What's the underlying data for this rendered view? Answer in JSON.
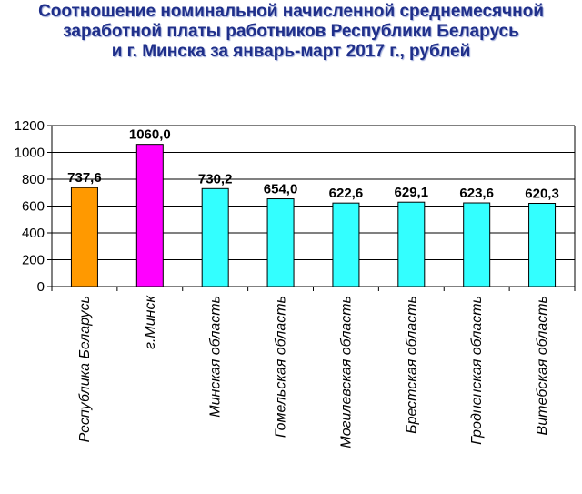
{
  "title_lines": [
    "Соотношение номинальной начисленной среднемесячной",
    "заработной платы работников Республики Беларусь",
    "и г. Минска за январь-март 2017 г., рублей"
  ],
  "colors": {
    "title": "#1f2f8a",
    "republic": "#ff9900",
    "minsk": "#ff00ff",
    "region": "#33ffff",
    "gridline": "#000000"
  },
  "chart_data": {
    "type": "bar",
    "title": "Соотношение номинальной начисленной среднемесячной заработной платы работников Республики Беларусь и г. Минска за январь-март 2017 г., рублей",
    "xlabel": "",
    "ylabel": "",
    "ylim": [
      0,
      1200
    ],
    "yticks": [
      0,
      200,
      400,
      600,
      800,
      1000,
      1200
    ],
    "grid": true,
    "legend": "none",
    "categories": [
      "Республика Беларусь",
      "г.Минск",
      "Минская область",
      "Гомельская область",
      "Могилевская область",
      "Брестская область",
      "Гродненская область",
      "Витебская область"
    ],
    "values": [
      737.6,
      1060.0,
      730.2,
      654.0,
      622.6,
      629.1,
      623.6,
      620.3
    ],
    "value_labels": [
      "737,6",
      "1060,0",
      "730,2",
      "654,0",
      "622,6",
      "629,1",
      "623,6",
      "620,3"
    ],
    "bar_colors": [
      "#ff9900",
      "#ff00ff",
      "#33ffff",
      "#33ffff",
      "#33ffff",
      "#33ffff",
      "#33ffff",
      "#33ffff"
    ]
  }
}
